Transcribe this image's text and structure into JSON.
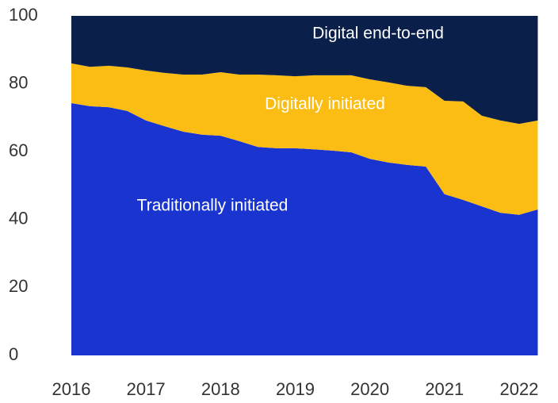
{
  "chart_data": {
    "type": "stacked_area",
    "x": [
      2016,
      2016.25,
      2016.5,
      2016.75,
      2017,
      2017.25,
      2017.5,
      2017.75,
      2018,
      2018.25,
      2018.5,
      2018.75,
      2019,
      2019.25,
      2019.5,
      2019.75,
      2020,
      2020.25,
      2020.5,
      2020.75,
      2021,
      2021.25,
      2021.5,
      2021.75,
      2022,
      2022.25
    ],
    "series": [
      {
        "name": "Traditionally initiated",
        "color": "#1a35cf",
        "values": [
          74.3,
          73.4,
          73.1,
          72,
          69.2,
          67.5,
          65.9,
          65,
          64.7,
          63.1,
          61.4,
          61,
          61,
          60.7,
          60.3,
          59.8,
          57.9,
          56.8,
          56.1,
          55.6,
          47.5,
          45.8,
          43.9,
          42,
          41.4,
          43
        ]
      },
      {
        "name": "Digitally initiated",
        "color": "#fbbd13",
        "values": [
          11.7,
          11.6,
          12.2,
          12.8,
          14.7,
          15.7,
          16.8,
          17.7,
          18.7,
          19.6,
          21.3,
          21.5,
          21.2,
          21.8,
          22.2,
          22.7,
          23.4,
          23.6,
          23.3,
          23.4,
          27.5,
          29,
          26.7,
          27.2,
          26.8,
          26.2
        ]
      },
      {
        "name": "Digital end-to-end",
        "color": "#0a1f4a",
        "values": [
          14,
          15,
          14.7,
          15.2,
          16.1,
          16.8,
          17.3,
          17.3,
          16.6,
          17.3,
          17.3,
          17.5,
          17.8,
          17.5,
          17.5,
          17.5,
          18.7,
          19.6,
          20.6,
          21,
          25,
          25.2,
          29.4,
          30.8,
          31.8,
          30.8
        ]
      }
    ],
    "xlim": [
      2016,
      2022.25
    ],
    "xticks": [
      2016,
      2017,
      2018,
      2019,
      2020,
      2021,
      2022
    ],
    "ylim": [
      0,
      100
    ],
    "yticks": [
      0,
      20,
      40,
      60,
      80,
      100
    ],
    "grid": false
  }
}
